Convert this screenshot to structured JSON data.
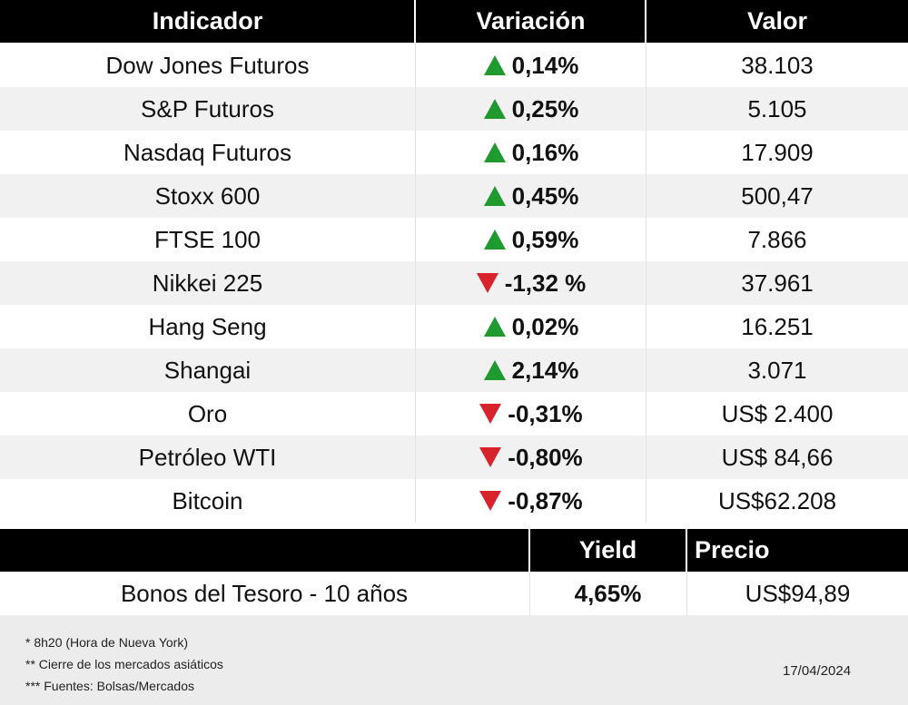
{
  "table": {
    "header": [
      "Indicador",
      "Variación",
      "Valor"
    ],
    "rows": [
      {
        "cells": [
          "Dow Jones Futuros",
          "0,14%",
          "38.103"
        ],
        "trend": "up"
      },
      {
        "cells": [
          "S&P Futuros",
          "0,25%",
          "5.105"
        ],
        "trend": "up"
      },
      {
        "cells": [
          "Nasdaq Futuros",
          "0,16%",
          "17.909"
        ],
        "trend": "up"
      },
      {
        "cells": [
          "Stoxx 600",
          "0,45%",
          "500,47"
        ],
        "trend": "up"
      },
      {
        "cells": [
          "FTSE 100",
          "0,59%",
          "7.866"
        ],
        "trend": "up"
      },
      {
        "cells": [
          "Nikkei 225",
          "-1,32 %",
          "37.961"
        ],
        "trend": "down"
      },
      {
        "cells": [
          "Hang Seng",
          "0,02%",
          "16.251"
        ],
        "trend": "up"
      },
      {
        "cells": [
          "Shangai",
          "2,14%",
          "3.071"
        ],
        "trend": "up"
      },
      {
        "cells": [
          "Oro",
          "-0,31%",
          "US$ 2.400"
        ],
        "trend": "down"
      },
      {
        "cells": [
          "Petróleo WTI",
          "-0,80%",
          "US$ 84,66"
        ],
        "trend": "down"
      },
      {
        "cells": [
          "Bitcoin",
          "-0,87%",
          "US$62.208"
        ],
        "trend": "down"
      }
    ],
    "trend_colors": {
      "up": "#1f9a2e",
      "down": "#d8232a"
    }
  },
  "bonds": {
    "header": [
      "Yield",
      "Precio"
    ],
    "row": [
      "Bonos del Tesoro - 10 años",
      "4,65%",
      "US$94,89"
    ]
  },
  "footer": {
    "notes": [
      "* 8h20 (Hora de Nueva York)",
      "** Cierre de los mercados asiáticos",
      "*** Fuentes: Bolsas/Mercados"
    ],
    "date": "17/04/2024"
  }
}
